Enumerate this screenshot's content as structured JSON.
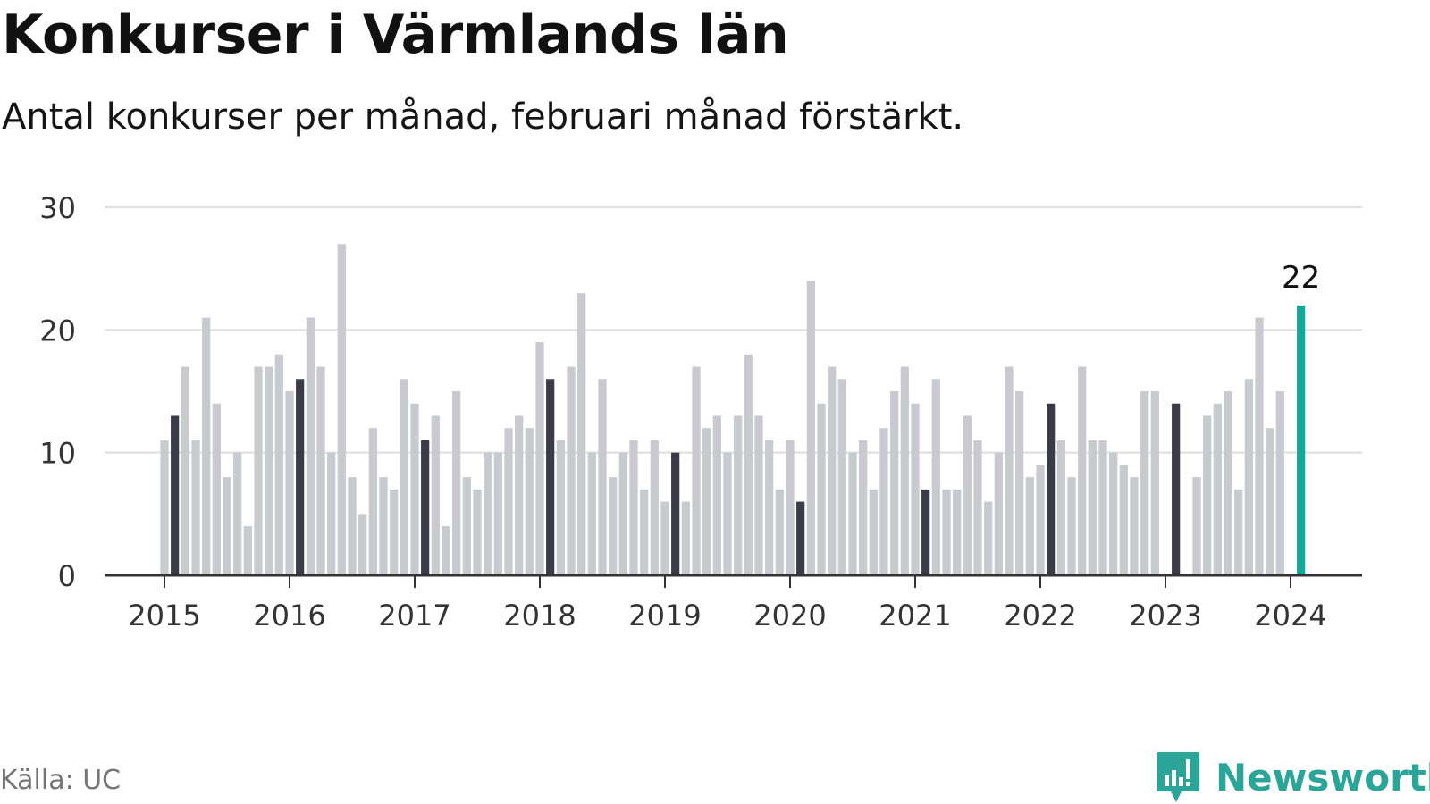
{
  "title": "Konkurser i Värmlands län",
  "subtitle": "Antal konkurser per månad, februari månad förstärkt.",
  "source": "Källa: UC",
  "brand": "Newsworthy",
  "colors": {
    "bar": "#c9c9d0",
    "highlight_february": "#3b3b47",
    "latest": "#12a89a",
    "grid": "#dedede",
    "axis": "#333333",
    "brand": "#2aa597"
  },
  "chart_data": {
    "type": "bar",
    "title": "Konkurser i Värmlands län",
    "subtitle": "Antal konkurser per månad, februari månad förstärkt.",
    "xlabel": "",
    "ylabel": "",
    "ylim": [
      0,
      30
    ],
    "yticks": [
      0,
      10,
      20,
      30
    ],
    "xtick_labels": [
      "2015",
      "2016",
      "2017",
      "2018",
      "2019",
      "2020",
      "2021",
      "2022",
      "2023",
      "2024"
    ],
    "grid": true,
    "start": "2015-01",
    "values": [
      11,
      13,
      17,
      11,
      21,
      14,
      8,
      10,
      4,
      17,
      17,
      18,
      15,
      16,
      21,
      17,
      10,
      27,
      8,
      5,
      12,
      8,
      7,
      16,
      14,
      11,
      13,
      4,
      15,
      8,
      7,
      10,
      10,
      12,
      13,
      12,
      19,
      16,
      11,
      17,
      23,
      10,
      16,
      8,
      10,
      11,
      7,
      11,
      6,
      10,
      6,
      17,
      12,
      13,
      10,
      13,
      18,
      13,
      11,
      7,
      11,
      6,
      24,
      14,
      17,
      16,
      10,
      11,
      7,
      12,
      15,
      17,
      14,
      7,
      16,
      7,
      7,
      13,
      11,
      6,
      10,
      17,
      15,
      8,
      9,
      14,
      11,
      8,
      17,
      11,
      11,
      10,
      9,
      8,
      15,
      15,
      0,
      14,
      0,
      8,
      13,
      14,
      15,
      7,
      16,
      21,
      12,
      15,
      0,
      22
    ],
    "highlighted_month": "february",
    "annotation": {
      "label": "22",
      "month": "2024-02"
    }
  }
}
